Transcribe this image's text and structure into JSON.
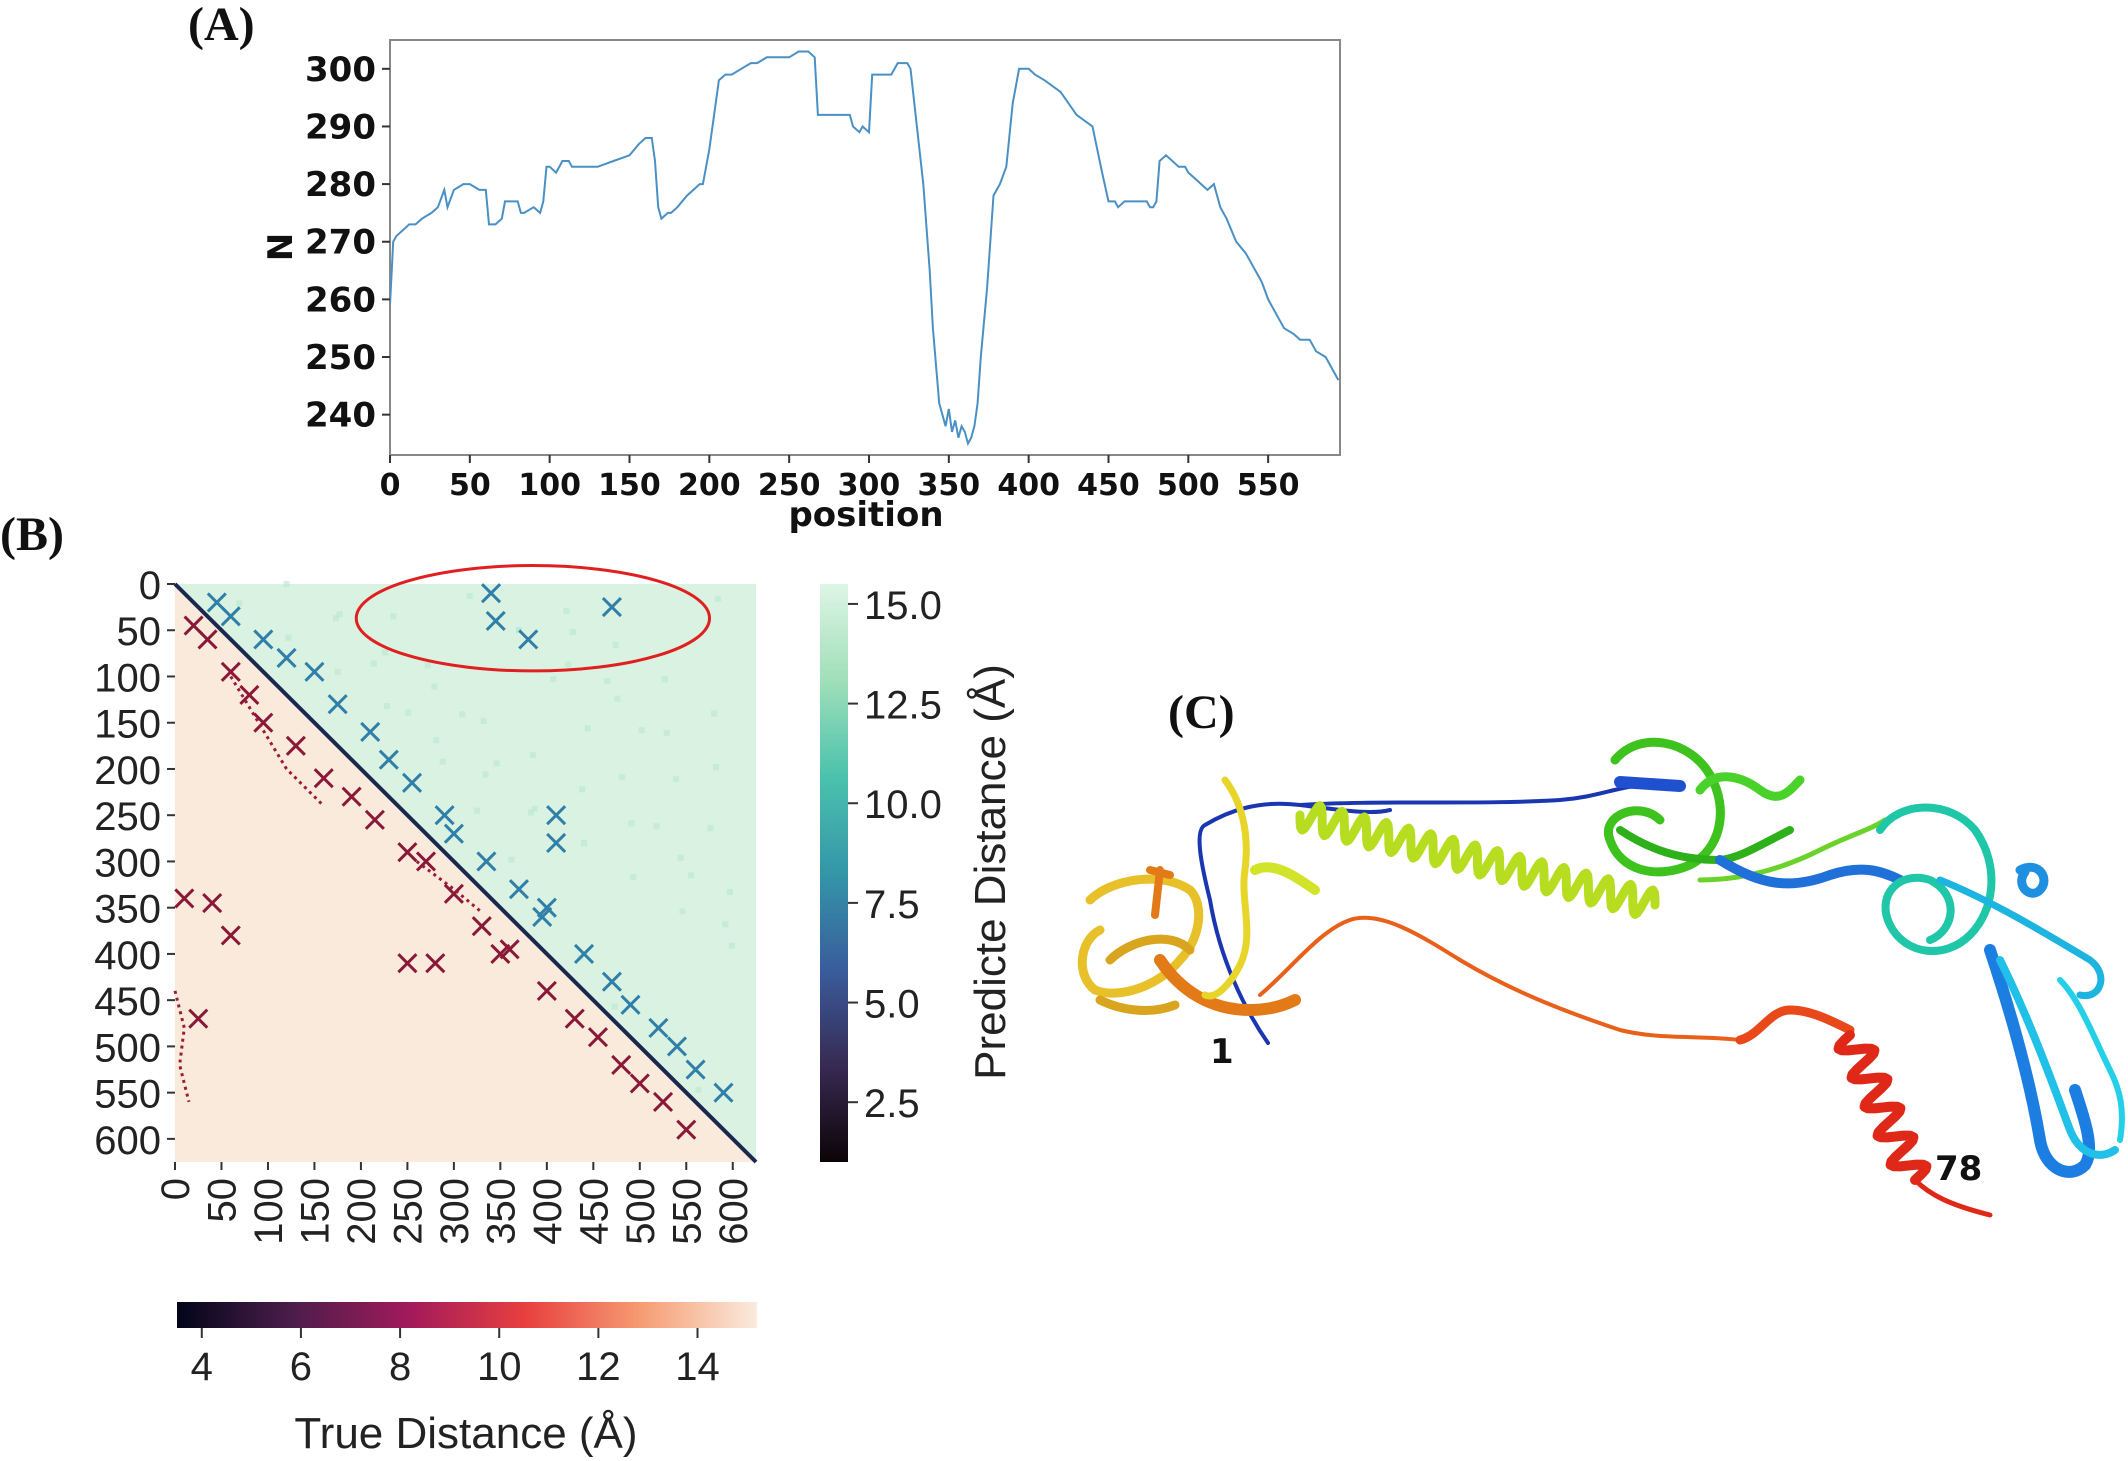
{
  "panels": {
    "a": {
      "label": "(A)"
    },
    "b": {
      "label": "(B)"
    },
    "c": {
      "label": "(C)"
    }
  },
  "chart_data": [
    {
      "id": "A",
      "type": "line",
      "xlabel": "position",
      "ylabel": "N",
      "xlim": [
        0,
        595
      ],
      "ylim": [
        233,
        305
      ],
      "xticks": [
        0,
        50,
        100,
        150,
        200,
        250,
        300,
        350,
        400,
        450,
        500,
        550
      ],
      "yticks": [
        240,
        250,
        260,
        270,
        280,
        290,
        300
      ],
      "series_color": "#4a90c4",
      "x": [
        0,
        2,
        4,
        8,
        12,
        16,
        20,
        26,
        30,
        34,
        36,
        40,
        46,
        50,
        56,
        60,
        62,
        64,
        66,
        70,
        72,
        74,
        76,
        80,
        82,
        84,
        90,
        94,
        96,
        98,
        100,
        104,
        108,
        112,
        114,
        120,
        130,
        140,
        150,
        156,
        160,
        164,
        166,
        168,
        170,
        174,
        176,
        180,
        186,
        190,
        194,
        196,
        198,
        200,
        206,
        210,
        214,
        220,
        226,
        230,
        236,
        240,
        246,
        250,
        256,
        262,
        266,
        268,
        270,
        274,
        280,
        284,
        288,
        290,
        294,
        296,
        300,
        302,
        304,
        306,
        310,
        314,
        318,
        320,
        324,
        326,
        330,
        334,
        338,
        340,
        344,
        346,
        348,
        350,
        352,
        354,
        356,
        358,
        360,
        362,
        364,
        366,
        368,
        370,
        374,
        378,
        382,
        386,
        390,
        394,
        396,
        400,
        404,
        410,
        420,
        430,
        440,
        446,
        450,
        454,
        456,
        460,
        466,
        470,
        474,
        476,
        478,
        480,
        482,
        486,
        490,
        494,
        498,
        500,
        504,
        508,
        512,
        516,
        520,
        524,
        530,
        536,
        540,
        546,
        550,
        556,
        560,
        566,
        570,
        576,
        580,
        586,
        590,
        594
      ],
      "y": [
        259,
        270,
        271,
        272,
        273,
        273,
        274,
        275,
        276,
        279,
        276,
        279,
        280,
        280,
        279,
        279,
        273,
        273,
        273,
        274,
        277,
        277,
        277,
        277,
        275,
        275,
        276,
        275,
        277,
        283,
        283,
        282,
        284,
        284,
        283,
        283,
        283,
        284,
        285,
        287,
        288,
        288,
        284,
        276,
        274,
        275,
        275,
        276,
        278,
        279,
        280,
        280,
        283,
        286,
        298,
        299,
        299,
        300,
        301,
        301,
        302,
        302,
        302,
        302,
        303,
        303,
        302,
        292,
        292,
        292,
        292,
        292,
        292,
        290,
        289,
        290,
        289,
        299,
        299,
        299,
        299,
        299,
        301,
        301,
        301,
        300,
        290,
        280,
        265,
        255,
        242,
        240,
        238,
        241,
        237,
        239,
        236,
        238,
        237,
        235,
        236,
        238,
        242,
        250,
        262,
        278,
        280,
        283,
        294,
        300,
        300,
        300,
        299,
        298,
        296,
        292,
        290,
        282,
        277,
        277,
        276,
        277,
        277,
        277,
        277,
        276,
        276,
        277,
        284,
        285,
        284,
        283,
        283,
        282,
        281,
        280,
        279,
        280,
        276,
        274,
        270,
        268,
        266,
        263,
        260,
        257,
        255,
        254,
        253,
        253,
        251,
        250,
        248,
        246
      ]
    },
    {
      "id": "B",
      "type": "heatmap",
      "xticks": [
        0,
        50,
        100,
        150,
        200,
        250,
        300,
        350,
        400,
        450,
        500,
        550,
        600
      ],
      "yticks": [
        0,
        50,
        100,
        150,
        200,
        250,
        300,
        350,
        400,
        450,
        500,
        550,
        600
      ],
      "range": [
        0,
        625
      ],
      "upper_triangle": "Predicte Distance",
      "lower_triangle": "True Distance",
      "colorbar_predicted": {
        "label": "Predicte Distance (Å)",
        "ticks": [
          "2.5",
          "5.0",
          "7.5",
          "10.0",
          "12.5",
          "15.0"
        ],
        "tick_values": [
          2.5,
          5.0,
          7.5,
          10.0,
          12.5,
          15.0
        ],
        "range": [
          1,
          15.5
        ],
        "colors": [
          "#0b0405",
          "#382a54",
          "#395d9c",
          "#3496a9",
          "#4bc2ad",
          "#a0dfb9",
          "#def5e5"
        ]
      },
      "colorbar_true": {
        "label": "True Distance (Å)",
        "ticks": [
          "4",
          "6",
          "8",
          "10",
          "12",
          "14"
        ],
        "tick_values": [
          4,
          6,
          8,
          10,
          12,
          14
        ],
        "range": [
          3.5,
          15.2
        ],
        "colors": [
          "#03051a",
          "#4c1d4b",
          "#a11a5b",
          "#e83f3f",
          "#f69c73",
          "#faebdd"
        ]
      },
      "highlight": {
        "shape": "ellipse",
        "color": "#e02020",
        "x_center": 385,
        "y_center": 37,
        "x_radius": 190,
        "y_radius": 57
      }
    }
  ],
  "structure": {
    "label_start": "1",
    "label_end": "78"
  }
}
